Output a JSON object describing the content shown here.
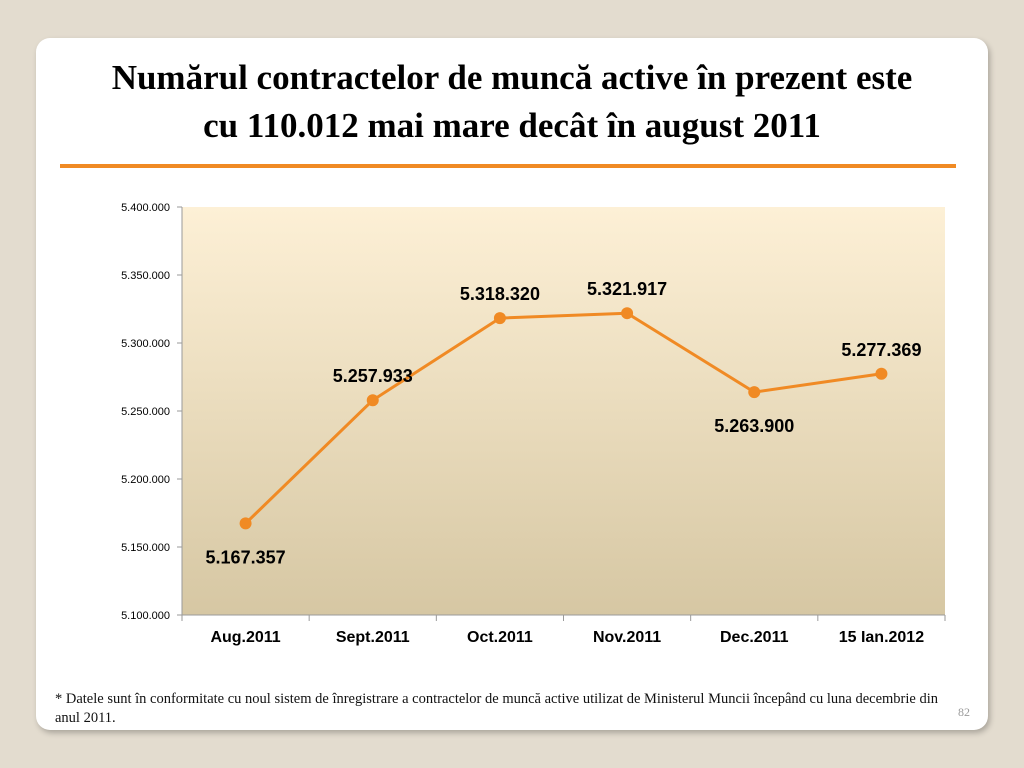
{
  "slide": {
    "title_line1": "Numărul contractelor de muncă active în prezent este",
    "title_line2": "cu 110.012 mai mare decât în august 2011",
    "footnote": "* Datele sunt în conformitate cu noul sistem de înregistrare a contractelor de muncă active utilizat de Ministerul Muncii începând cu luna decembrie din anul 2011.",
    "page_number": "82",
    "accent_color": "#f08a24"
  },
  "chart_data": {
    "type": "line",
    "title": "",
    "xlabel": "",
    "ylabel": "",
    "categories": [
      "Aug.2011",
      "Sept.2011",
      "Oct.2011",
      "Nov.2011",
      "Dec.2011",
      "15 Ian.2012"
    ],
    "series": [
      {
        "values": [
          5167357,
          5257933,
          5318320,
          5321917,
          5263900,
          5277369
        ],
        "labels": [
          "5.167.357",
          "5.257.933",
          "5.318.320",
          "5.321.917",
          "5.263.900",
          "5.277.369"
        ],
        "color": "#f08a24"
      }
    ],
    "ylim": [
      5100000,
      5400000
    ],
    "yticks": [
      5100000,
      5150000,
      5200000,
      5250000,
      5300000,
      5350000,
      5400000
    ],
    "ytick_labels": [
      "5.100.000",
      "5.150.000",
      "5.200.000",
      "5.250.000",
      "5.300.000",
      "5.350.000",
      "5.400.000"
    ],
    "grid": false,
    "legend": "none",
    "plot_background": [
      "#fdf0d6",
      "#d6c7a3"
    ]
  }
}
